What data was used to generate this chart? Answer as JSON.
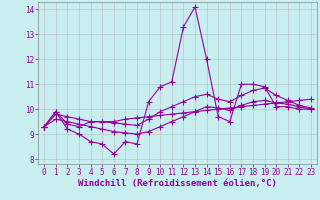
{
  "xlabel": "Windchill (Refroidissement éolien,°C)",
  "ylabel": "",
  "bg_color": "#c8eef0",
  "line_color": "#990099",
  "xlim": [
    -0.5,
    23.5
  ],
  "ylim": [
    7.8,
    14.3
  ],
  "xticks": [
    0,
    1,
    2,
    3,
    4,
    5,
    6,
    7,
    8,
    9,
    10,
    11,
    12,
    13,
    14,
    15,
    16,
    17,
    18,
    19,
    20,
    21,
    22,
    23
  ],
  "yticks": [
    8,
    9,
    10,
    11,
    12,
    13,
    14
  ],
  "series1": [
    9.3,
    9.9,
    9.2,
    9.0,
    8.7,
    8.6,
    8.2,
    8.7,
    8.6,
    10.3,
    10.9,
    11.1,
    13.3,
    14.1,
    12.0,
    9.7,
    9.5,
    11.0,
    11.0,
    10.9,
    10.1,
    10.1,
    10.0,
    10.0
  ],
  "series2": [
    9.3,
    9.9,
    9.4,
    9.3,
    9.5,
    9.5,
    9.5,
    9.6,
    9.65,
    9.7,
    9.75,
    9.8,
    9.85,
    9.9,
    9.95,
    10.0,
    10.05,
    10.1,
    10.15,
    10.2,
    10.25,
    10.3,
    10.35,
    10.4
  ],
  "series3": [
    9.3,
    9.8,
    9.7,
    9.6,
    9.5,
    9.5,
    9.45,
    9.4,
    9.35,
    9.6,
    9.9,
    10.1,
    10.3,
    10.5,
    10.6,
    10.4,
    10.3,
    10.55,
    10.75,
    10.85,
    10.55,
    10.35,
    10.15,
    10.05
  ],
  "series4": [
    9.3,
    9.6,
    9.5,
    9.4,
    9.3,
    9.2,
    9.1,
    9.05,
    9.0,
    9.1,
    9.3,
    9.5,
    9.7,
    9.9,
    10.1,
    10.05,
    9.95,
    10.15,
    10.3,
    10.35,
    10.25,
    10.2,
    10.1,
    10.0
  ],
  "tick_fontsize": 5.5,
  "xlabel_fontsize": 6.5,
  "grid_color": "#b0b0b0",
  "marker_size": 2.0,
  "line_width": 0.8
}
